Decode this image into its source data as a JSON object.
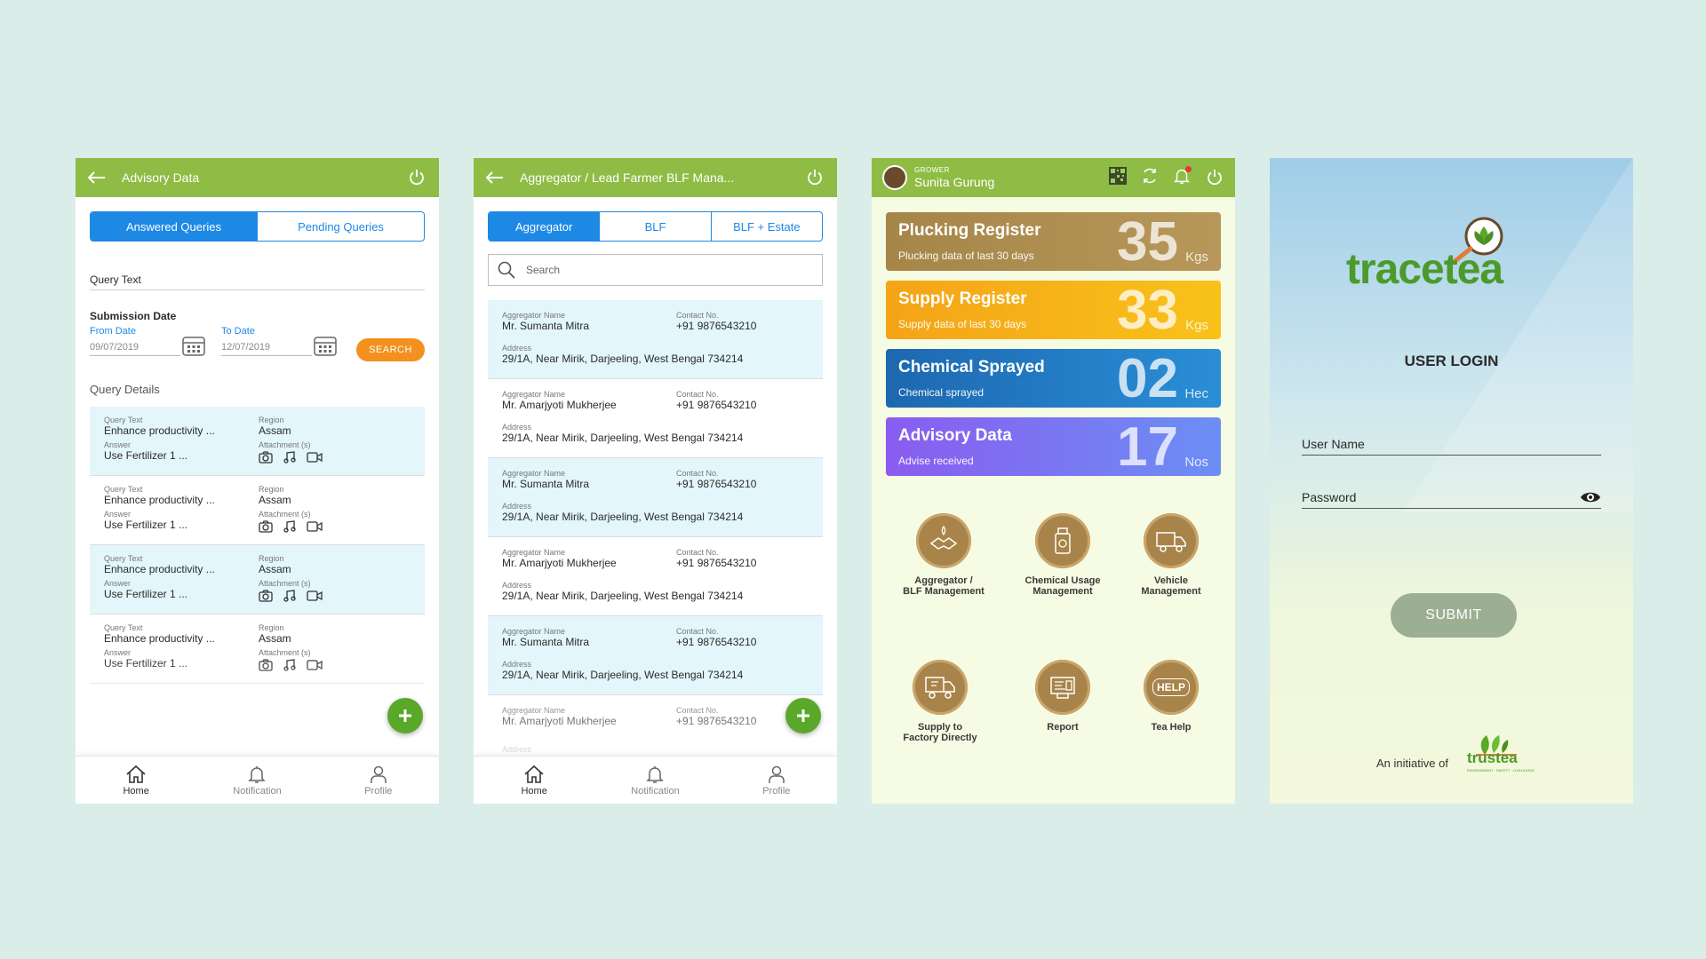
{
  "screen1": {
    "title": "Advisory Data",
    "tabs": [
      "Answered Queries",
      "Pending Queries"
    ],
    "query_text_label": "Query Text",
    "submission_date_label": "Submission Date",
    "from_label": "From Date",
    "from_value": "09/07/2019",
    "to_label": "To Date",
    "to_value": "12/07/2019",
    "search_label": "SEARCH",
    "section_label": "Query Details",
    "keys": {
      "query": "Query Text",
      "region": "Region",
      "answer": "Answer",
      "attachment": "Attachment (s)"
    },
    "cards": [
      {
        "query": "Enhance productivity ...",
        "region": "Assam",
        "answer": "Use Fertilizer 1 ..."
      },
      {
        "query": "Enhance productivity ...",
        "region": "Assam",
        "answer": "Use Fertilizer 1 ..."
      },
      {
        "query": "Enhance productivity ...",
        "region": "Assam",
        "answer": "Use Fertilizer 1 ..."
      },
      {
        "query": "Enhance productivity ...",
        "region": "Assam",
        "answer": "Use Fertilizer 1 ..."
      }
    ]
  },
  "screen2": {
    "title": "Aggregator / Lead Farmer BLF Mana...",
    "tabs": [
      "Aggregator",
      "BLF",
      "BLF + Estate"
    ],
    "search_placeholder": "Search",
    "keys": {
      "name": "Aggregator Name",
      "contact": "Contact No.",
      "address": "Address"
    },
    "cards": [
      {
        "name": "Mr. Sumanta Mitra",
        "contact": "+91 9876543210",
        "address": "29/1A, Near Mirik, Darjeeling, West Bengal 734214"
      },
      {
        "name": "Mr. Amarjyoti Mukherjee",
        "contact": "+91 9876543210",
        "address": "29/1A, Near Mirik, Darjeeling, West Bengal 734214"
      },
      {
        "name": "Mr. Sumanta Mitra",
        "contact": "+91 9876543210",
        "address": "29/1A, Near Mirik, Darjeeling, West Bengal 734214"
      },
      {
        "name": "Mr. Amarjyoti Mukherjee",
        "contact": "+91 9876543210",
        "address": "29/1A, Near Mirik, Darjeeling, West Bengal 734214"
      },
      {
        "name": "Mr. Sumanta Mitra",
        "contact": "+91 9876543210",
        "address": "29/1A, Near Mirik, Darjeeling, West Bengal 734214"
      },
      {
        "name": "Mr. Amarjyoti Mukherjee",
        "contact": "+91 9876543210",
        "address": ""
      }
    ]
  },
  "screen3": {
    "role": "GROWER",
    "user": "Sunita Gurung",
    "stats": [
      {
        "title": "Plucking Register",
        "sub": "Plucking data of last 30 days",
        "num": "35",
        "unit": "Kgs",
        "color": "#a58648"
      },
      {
        "title": "Supply Register",
        "sub": "Supply data of last 30 days",
        "num": "33",
        "unit": "Kgs",
        "color": "#f4a417"
      },
      {
        "title": "Chemical Sprayed",
        "sub": "Chemical sprayed",
        "num": "02",
        "unit": "Hec",
        "color": "#1d68b0"
      },
      {
        "title": "Advisory Data",
        "sub": "Advise received",
        "num": "17",
        "unit": "Nos",
        "color": "#8a5cf0"
      }
    ],
    "menu": [
      {
        "l1": "Aggregator /",
        "l2": "BLF Management"
      },
      {
        "l1": "Chemical Usage",
        "l2": "Management"
      },
      {
        "l1": "Vehicle",
        "l2": "Management"
      },
      {
        "l1": "Supply to",
        "l2": "Factory Directly"
      },
      {
        "l1": "Report",
        "l2": ""
      },
      {
        "l1": "Tea Help",
        "l2": ""
      }
    ],
    "help_badge": "HELP"
  },
  "screen4": {
    "logo_text": "tracetea",
    "heading": "USER LOGIN",
    "username_label": "User Name",
    "password_label": "Password",
    "submit_label": "SUBMIT",
    "initiative_label": "An initiative of",
    "partner_logo": "trustea",
    "partner_tagline": "ENVIRONMENT · SAFETY · LIVELIHOOD"
  },
  "nav": {
    "home": "Home",
    "notification": "Notification",
    "profile": "Profile"
  },
  "colors": {
    "appbar": "#8fbc45",
    "accent_blue": "#1e88e5",
    "search_orange": "#f4901e",
    "fab_green": "#5aa829",
    "icon_brown": "#a8844a"
  }
}
